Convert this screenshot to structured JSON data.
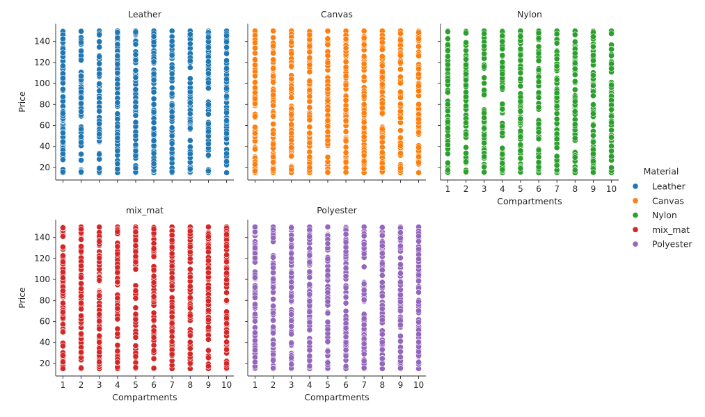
{
  "chart_data": {
    "type": "scatter",
    "facet_by": "Material",
    "x_label": "Compartments",
    "y_label": "Price",
    "x_ticks": [
      1,
      2,
      3,
      4,
      5,
      6,
      7,
      8,
      9,
      10
    ],
    "y_ticks": [
      20,
      40,
      60,
      80,
      100,
      120,
      140
    ],
    "xlim": [
      0.6,
      10.4
    ],
    "ylim": [
      8,
      157
    ],
    "price_range": [
      15,
      150
    ],
    "legend": {
      "title": "Material",
      "placement": "right",
      "entries": [
        "Leather",
        "Canvas",
        "Nylon",
        "mix_mat",
        "Polyester"
      ]
    },
    "panels": [
      {
        "title": "Leather",
        "color": "#1f77b4",
        "x": [
          1,
          2,
          3,
          4,
          5,
          6,
          7,
          8,
          9,
          10
        ],
        "y_min": 15,
        "y_max": 150
      },
      {
        "title": "Canvas",
        "color": "#ff7f0e",
        "x": [
          1,
          2,
          3,
          4,
          5,
          6,
          7,
          8,
          9,
          10
        ],
        "y_min": 15,
        "y_max": 150
      },
      {
        "title": "Nylon",
        "color": "#2ca02c",
        "x": [
          1,
          2,
          3,
          4,
          5,
          6,
          7,
          8,
          9,
          10
        ],
        "y_min": 15,
        "y_max": 150
      },
      {
        "title": "mix_mat",
        "color": "#d62728",
        "x": [
          1,
          2,
          3,
          4,
          5,
          6,
          7,
          8,
          9,
          10
        ],
        "y_min": 15,
        "y_max": 150
      },
      {
        "title": "Polyester",
        "color": "#9467bd",
        "x": [
          1,
          2,
          3,
          4,
          5,
          6,
          7,
          8,
          9,
          10
        ],
        "y_min": 15,
        "y_max": 150
      }
    ]
  }
}
